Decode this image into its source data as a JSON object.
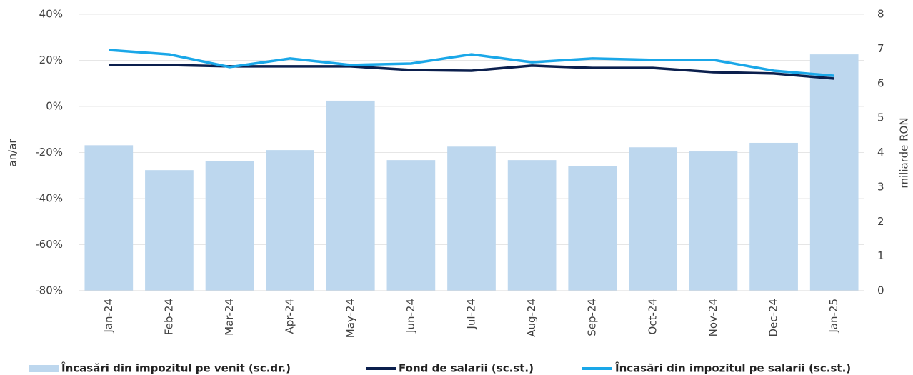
{
  "chart_data": {
    "type": "bar-line",
    "ylabel": "an/ar",
    "y2label": "miliarde RON",
    "categories": [
      "Jan-24",
      "Feb-24",
      "Mar-24",
      "Apr-24",
      "May-24",
      "Jun-24",
      "Jul-24",
      "Aug-24",
      "Sep-24",
      "Oct-24",
      "Nov-24",
      "Dec-24",
      "Jan-25"
    ],
    "series": [
      {
        "name": "Încasări din impozitul pe venit (sc.dr.)",
        "kind": "bar",
        "axis": "y2",
        "color": "#bdd7ee",
        "values": [
          4.21,
          3.49,
          3.76,
          4.07,
          5.5,
          3.78,
          4.17,
          3.78,
          3.6,
          4.15,
          4.03,
          4.28,
          6.84
        ]
      },
      {
        "name": "Fond de salarii (sc.st.)",
        "kind": "line",
        "axis": "y",
        "color": "#0b1f4d",
        "values": [
          18.0,
          18.0,
          17.4,
          17.4,
          17.4,
          15.8,
          15.5,
          17.7,
          16.7,
          16.7,
          14.9,
          14.3,
          12.1
        ]
      },
      {
        "name": "Încasări din impozitul pe salarii (sc.st.)",
        "kind": "line",
        "axis": "y",
        "color": "#1aa7e8",
        "values": [
          24.5,
          22.6,
          17.1,
          20.8,
          18.0,
          18.6,
          22.6,
          19.2,
          20.8,
          20.2,
          20.2,
          15.5,
          13.3
        ]
      }
    ],
    "ylim": [
      -80,
      40
    ],
    "yticks": [
      {
        "value": -80,
        "label": "-80%"
      },
      {
        "value": -60,
        "label": "-60%"
      },
      {
        "value": -40,
        "label": "-40%"
      },
      {
        "value": -20,
        "label": "-20%"
      },
      {
        "value": 0,
        "label": "0%"
      },
      {
        "value": 20,
        "label": "20%"
      },
      {
        "value": 40,
        "label": "40%"
      }
    ],
    "y2lim": [
      0,
      8
    ],
    "y2ticks": [
      0,
      1,
      2,
      3,
      4,
      5,
      6,
      7,
      8
    ],
    "grid": true,
    "legend": "bottom"
  }
}
